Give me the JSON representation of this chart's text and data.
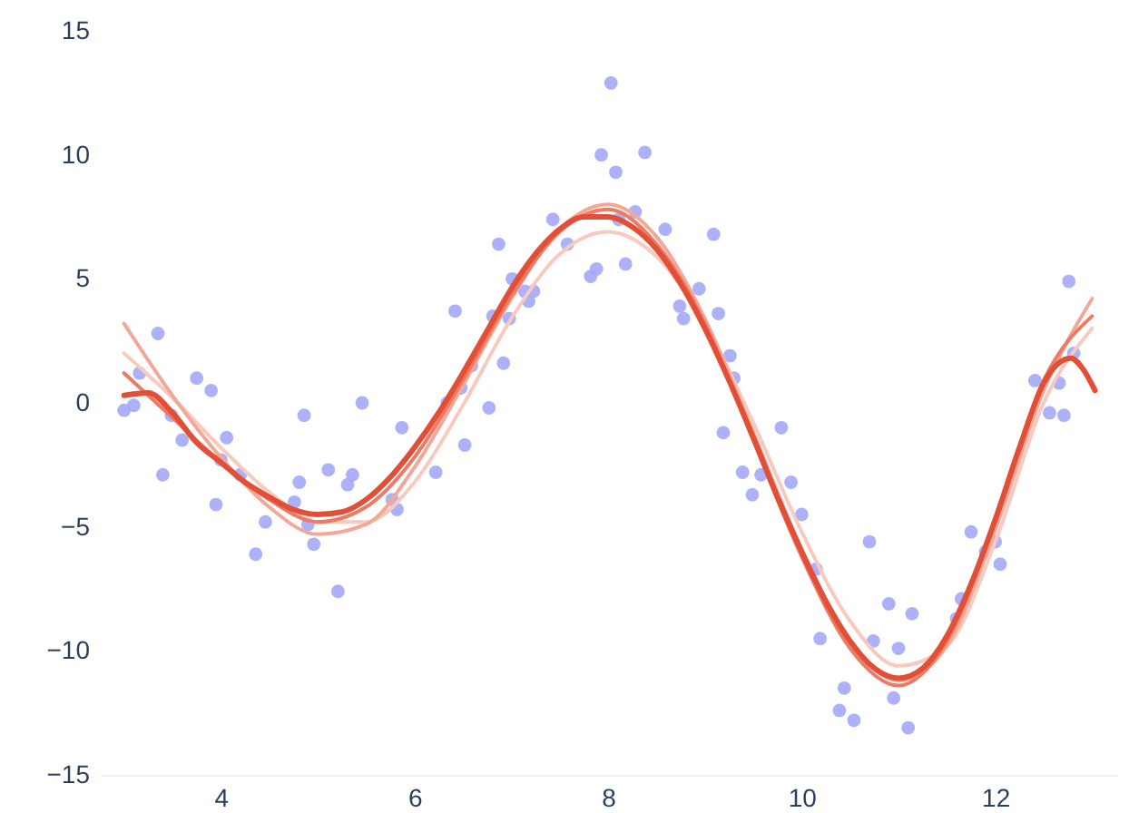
{
  "chart_data": {
    "type": "scatter",
    "xlim": [
      2.75,
      13.25
    ],
    "xticks": [
      4,
      6,
      8,
      10,
      12
    ],
    "ylim": [
      -15,
      15
    ],
    "yticks": [
      -15,
      -10,
      -5,
      0,
      5,
      10,
      15
    ],
    "grid": false,
    "series": [
      {
        "marker": "circle",
        "color": "#a3a9f8",
        "x": [
          3.0,
          3.1,
          3.16,
          3.35,
          3.4,
          3.49,
          3.6,
          3.75,
          3.9,
          3.95,
          4.0,
          4.06,
          4.2,
          4.36,
          4.46,
          4.76,
          4.81,
          4.86,
          4.9,
          4.96,
          5.11,
          5.21,
          5.31,
          5.36,
          5.46,
          5.77,
          5.82,
          5.87,
          6.22,
          6.34,
          6.42,
          6.48,
          6.52,
          6.59,
          6.77,
          6.81,
          6.87,
          6.92,
          6.98,
          7.01,
          7.14,
          7.18,
          7.23,
          7.43,
          7.58,
          7.82,
          7.88,
          7.93,
          8.03,
          8.08,
          8.11,
          8.18,
          8.28,
          8.38,
          8.59,
          8.74,
          8.78,
          8.94,
          9.09,
          9.14,
          9.19,
          9.26,
          9.3,
          9.39,
          9.49,
          9.58,
          9.79,
          9.89,
          10.0,
          10.15,
          10.19,
          10.39,
          10.44,
          10.54,
          10.7,
          10.74,
          10.9,
          10.95,
          11.0,
          11.1,
          11.14,
          11.6,
          11.65,
          11.75,
          11.9,
          12.0,
          12.05,
          12.41,
          12.56,
          12.66,
          12.71,
          12.76,
          12.81
        ],
        "values": [
          -0.3,
          -0.1,
          1.2,
          2.8,
          -2.9,
          -0.5,
          -1.5,
          1.0,
          0.5,
          -4.1,
          -2.3,
          -1.4,
          -2.9,
          -6.1,
          -4.8,
          -4.0,
          -3.2,
          -0.5,
          -4.9,
          -5.7,
          -2.7,
          -7.6,
          -3.3,
          -2.9,
          0.0,
          -3.9,
          -4.3,
          -1.0,
          -2.8,
          0.0,
          3.7,
          0.6,
          -1.7,
          1.5,
          -0.2,
          3.5,
          6.4,
          1.6,
          3.4,
          5.0,
          4.5,
          4.1,
          4.5,
          7.4,
          6.4,
          5.1,
          5.4,
          10.0,
          12.9,
          9.3,
          7.4,
          5.6,
          7.7,
          10.1,
          7.0,
          3.9,
          3.4,
          4.6,
          6.8,
          3.6,
          -1.2,
          1.9,
          1.0,
          -2.8,
          -3.7,
          -2.9,
          -1.0,
          -3.2,
          -4.5,
          -6.7,
          -9.5,
          -12.4,
          -11.5,
          -12.8,
          -5.6,
          -9.6,
          -8.1,
          -11.9,
          -9.9,
          -13.1,
          -8.5,
          -8.7,
          -7.9,
          -5.2,
          -6.0,
          -5.6,
          -6.5,
          0.9,
          -0.4,
          0.8,
          -0.5,
          4.9,
          2.0
        ]
      },
      {
        "type": "line",
        "color": "#f8c9bd",
        "x": [
          3,
          3.5,
          4,
          4.5,
          5,
          5.5,
          6,
          6.5,
          7,
          7.5,
          8,
          8.5,
          9,
          9.5,
          10,
          10.5,
          11,
          11.5,
          12,
          12.5,
          13
        ],
        "values": [
          2.0,
          0.2,
          -1.8,
          -3.6,
          -4.8,
          -4.8,
          -3.2,
          -0.1,
          3.4,
          6.0,
          6.9,
          5.9,
          3.2,
          -0.8,
          -5.2,
          -8.8,
          -10.6,
          -9.8,
          -5.6,
          0.0,
          3.0
        ]
      },
      {
        "type": "line",
        "color": "#f3a897",
        "x": [
          3,
          3.5,
          4,
          4.5,
          5,
          5.5,
          6,
          6.5,
          7,
          7.5,
          8,
          8.5,
          9,
          9.5,
          10,
          10.5,
          11,
          11.5,
          12,
          12.5,
          13
        ],
        "values": [
          3.2,
          0.3,
          -2.2,
          -4.2,
          -5.3,
          -4.9,
          -2.6,
          0.7,
          4.2,
          7.0,
          8.0,
          6.7,
          3.4,
          -1.2,
          -5.9,
          -9.6,
          -11.2,
          -9.8,
          -5.1,
          0.5,
          4.2
        ]
      },
      {
        "type": "line",
        "color": "#ec7a64",
        "x": [
          3,
          3.5,
          4,
          4.5,
          5,
          5.5,
          6,
          6.5,
          7,
          7.5,
          8,
          8.5,
          9,
          9.5,
          10,
          10.5,
          11,
          11.5,
          12,
          12.5,
          13
        ],
        "values": [
          1.2,
          -0.6,
          -2.4,
          -3.9,
          -4.8,
          -4.2,
          -2.2,
          0.9,
          4.3,
          6.9,
          7.8,
          6.4,
          3.2,
          -1.5,
          -6.2,
          -9.9,
          -11.4,
          -9.6,
          -4.8,
          0.9,
          3.5
        ]
      },
      {
        "type": "line",
        "color": "#e14f37",
        "x": [
          3.0,
          3.25,
          3.5,
          3.75,
          4.0,
          4.25,
          4.5,
          4.75,
          5.0,
          5.25,
          5.5,
          5.75,
          6.0,
          6.25,
          6.5,
          6.75,
          7.0,
          7.25,
          7.5,
          7.75,
          8.0,
          8.25,
          8.5,
          8.75,
          9.0,
          9.25,
          9.5,
          9.75,
          10.0,
          10.25,
          10.5,
          10.75,
          11.0,
          11.25,
          11.5,
          11.75,
          12.0,
          12.25,
          12.5,
          12.78,
          12.9,
          13.03
        ],
        "values": [
          0.3,
          0.4,
          -0.4,
          -1.6,
          -2.4,
          -3.2,
          -3.8,
          -4.3,
          -4.5,
          -4.4,
          -3.9,
          -3.0,
          -1.8,
          -0.4,
          1.2,
          2.9,
          4.6,
          6.0,
          7.0,
          7.5,
          7.5,
          7.1,
          6.2,
          4.8,
          3.0,
          0.9,
          -1.4,
          -3.8,
          -6.0,
          -8.0,
          -9.6,
          -10.7,
          -11.1,
          -10.7,
          -9.4,
          -7.3,
          -4.7,
          -1.8,
          0.8,
          1.8,
          1.4,
          0.5
        ]
      }
    ]
  }
}
